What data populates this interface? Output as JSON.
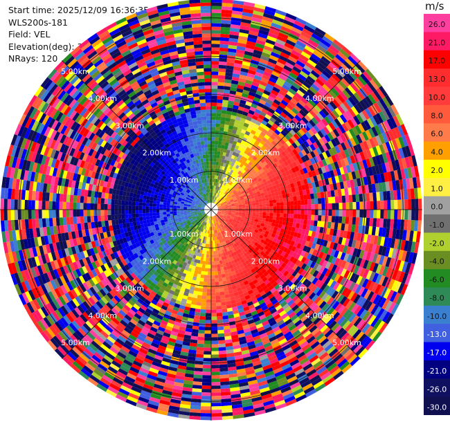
{
  "header": {
    "start_time": "Start time: 2025/12/09 16:36:35",
    "instrument": "WLS200s-181",
    "field": "Field: VEL",
    "elevation": "Elevation(deg): 35.00",
    "nrays": "NRays: 120"
  },
  "chart_data": {
    "type": "heatmap",
    "projection": "polar-ppi",
    "title": "",
    "field": "VEL",
    "unit": "m/s",
    "elevation_deg": 35.0,
    "nrays": 120,
    "range_rings_km": [
      1.0,
      2.0,
      3.0,
      4.0,
      5.0
    ],
    "range_labels": [
      "1.00km",
      "2.00km",
      "3.00km",
      "4.00km",
      "5.00km"
    ],
    "max_range_km": 5.5,
    "colorbar": {
      "ticks": [
        "26.0",
        "21.0",
        "17.0",
        "13.0",
        "10.0",
        "8.0",
        "6.0",
        "4.0",
        "2.0",
        "1.0",
        "0.0",
        "-1.0",
        "-2.0",
        "-4.0",
        "-6.0",
        "-8.0",
        "-10.0",
        "-13.0",
        "-17.0",
        "-21.0",
        "-26.0",
        "-30.0"
      ],
      "colors": [
        "#ff3fa0",
        "#ff1a66",
        "#ff0000",
        "#ff2d2d",
        "#ff3b3b",
        "#ff5a3c",
        "#ff7b4a",
        "#ffa000",
        "#ffff00",
        "#ffee44",
        "#a0a0a0",
        "#707070",
        "#b0d030",
        "#6b8e23",
        "#228b22",
        "#2e8b57",
        "#3a7fd0",
        "#4060e0",
        "#0000ee",
        "#000080",
        "#101060",
        "#101050"
      ]
    }
  }
}
